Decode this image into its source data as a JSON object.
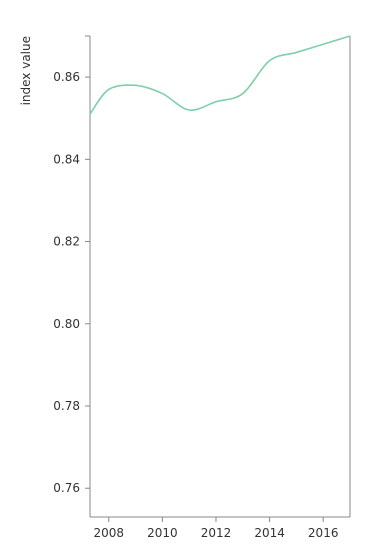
{
  "chart_data": {
    "type": "line",
    "title": "",
    "xlabel": "",
    "ylabel": "index value",
    "xlim": [
      2007.3,
      2017
    ],
    "ylim": [
      0.753,
      0.87
    ],
    "x_ticks": [
      {
        "value": 2008,
        "label": "2008"
      },
      {
        "value": 2010,
        "label": "2010"
      },
      {
        "value": 2012,
        "label": "2012"
      },
      {
        "value": 2014,
        "label": "2014"
      },
      {
        "value": 2016,
        "label": "2016"
      }
    ],
    "y_ticks": [
      {
        "value": 0.76,
        "label": "0.76"
      },
      {
        "value": 0.78,
        "label": "0.78"
      },
      {
        "value": 0.8,
        "label": "0.80"
      },
      {
        "value": 0.82,
        "label": "0.82"
      },
      {
        "value": 0.84,
        "label": "0.84"
      },
      {
        "value": 0.86,
        "label": "0.86"
      }
    ],
    "grid": false,
    "legend": "none",
    "series": [
      {
        "color": "#7fcfa8",
        "x": [
          2007.3,
          2008,
          2009,
          2010,
          2011,
          2012,
          2013,
          2014,
          2015,
          2016,
          2017
        ],
        "y": [
          0.851,
          0.857,
          0.858,
          0.856,
          0.852,
          0.854,
          0.856,
          0.864,
          0.866,
          0.868,
          0.87
        ]
      }
    ],
    "axis_color": "#888888"
  }
}
